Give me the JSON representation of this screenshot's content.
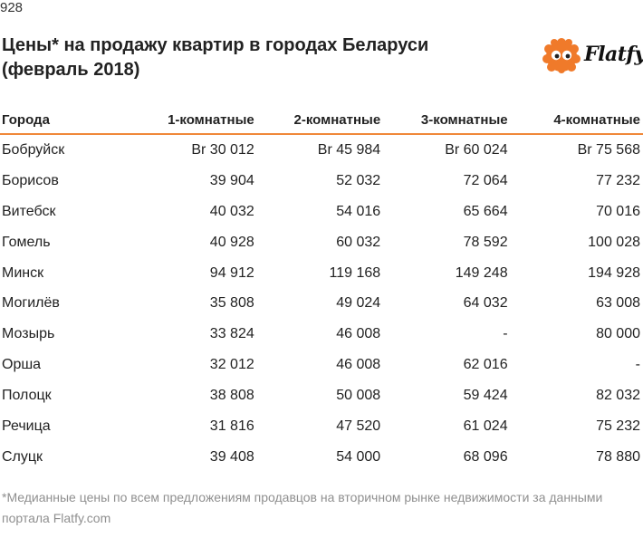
{
  "page_number": "928",
  "title": "Цены* на продажу квартир в городах Беларуси (февраль 2018)",
  "brand": {
    "name": "Flatfy",
    "accent_color": "#f0883a",
    "mascot_color": "#f07a2a"
  },
  "chart_data": {
    "type": "table",
    "title": "Цены* на продажу квартир в городах Беларуси (февраль 2018)",
    "columns": [
      "Города",
      "1-комнатные",
      "2-комнатные",
      "3-комнатные",
      "4-комнатные"
    ],
    "rows": [
      [
        "Бобруйск",
        "Br 30 012",
        "Br 45 984",
        "Br 60 024",
        "Br 75 568"
      ],
      [
        "Борисов",
        "39 904",
        "52 032",
        "72 064",
        "77 232"
      ],
      [
        "Витебск",
        "40 032",
        "54 016",
        "65 664",
        "70 016"
      ],
      [
        "Гомель",
        "40 928",
        "60 032",
        "78 592",
        "100 028"
      ],
      [
        "Минск",
        "94 912",
        "119 168",
        "149 248",
        "194 928"
      ],
      [
        "Могилёв",
        "35 808",
        "49 024",
        "64 032",
        "63 008"
      ],
      [
        "Мозырь",
        "33 824",
        "46 008",
        "-",
        "80 000"
      ],
      [
        "Орша",
        "32 012",
        "46 008",
        "62 016",
        "-"
      ],
      [
        "Полоцк",
        "38 808",
        "50 008",
        "59 424",
        "82 032"
      ],
      [
        "Речица",
        "31 816",
        "47 520",
        "61 024",
        "75 232"
      ],
      [
        "Слуцк",
        "39 408",
        "54 000",
        "68 096",
        "78 880"
      ]
    ]
  },
  "footnote": "*Медианные цены по всем предложениям продавцов на вторичном рынке недвижимости за данными портала Flatfy.com"
}
